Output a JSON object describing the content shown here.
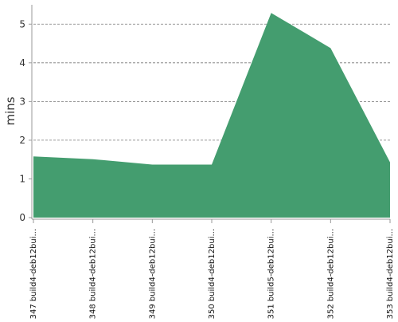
{
  "chart_data": {
    "type": "area",
    "ylabel": "mins",
    "xlabel": "",
    "title": "",
    "categories": [
      "#347 build4-deb12bui...",
      "#348 build4-deb12bui...",
      "#349 build4-deb12bui...",
      "#350 build4-deb12bui...",
      "#351 build5-deb12bui...",
      "#352 build4-deb12bui...",
      "#353 build4-deb12bui..."
    ],
    "series": [
      {
        "values": [
          1.58,
          1.51,
          1.37,
          1.37,
          5.29,
          4.38,
          1.43
        ]
      }
    ],
    "ylim": [
      0,
      5.5
    ],
    "yticks": [
      0,
      1,
      2,
      3,
      4,
      5
    ],
    "grid": true,
    "legend": "none"
  },
  "colors": {
    "area_fill": "#449d6f",
    "grid": "#777777",
    "axis": "#999999",
    "text": "#333333"
  }
}
